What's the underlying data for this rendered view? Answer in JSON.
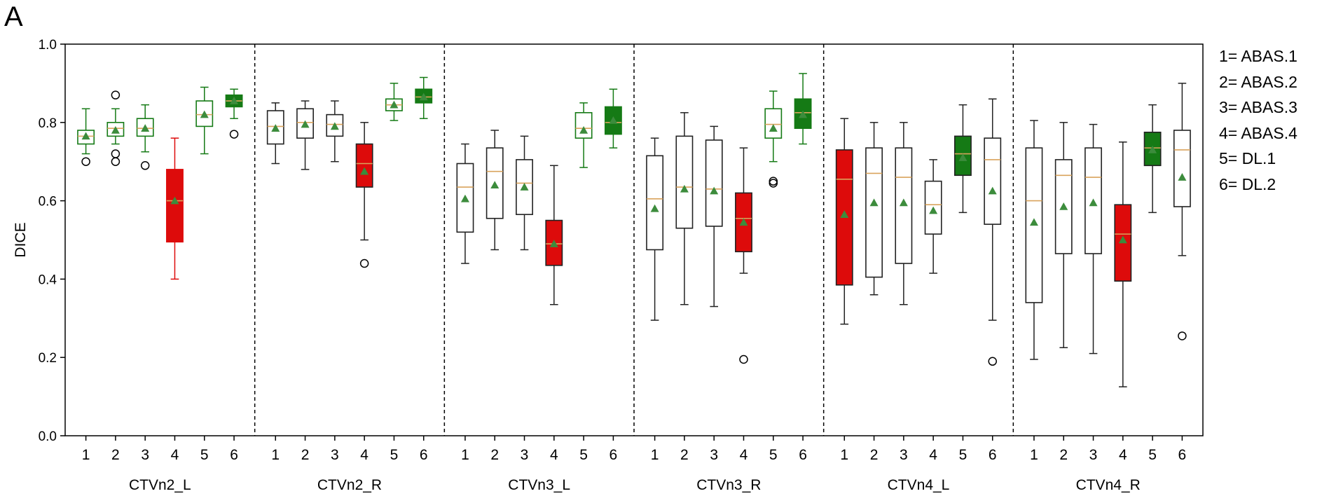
{
  "panel_label": "A",
  "chart_data": {
    "type": "box",
    "title": "",
    "ylabel": "DICE",
    "ylim": [
      0.0,
      1.0
    ],
    "yticks": [
      "0.0",
      "0.2",
      "0.4",
      "0.6",
      "0.8",
      "1.0"
    ],
    "grid": false,
    "legend_position": "right",
    "legend": [
      "1= ABAS.1",
      "2= ABAS.2",
      "3= ABAS.3",
      "4= ABAS.4",
      "5= DL.1",
      "6= DL.2"
    ],
    "method_ticks": [
      "1",
      "2",
      "3",
      "4",
      "5",
      "6"
    ],
    "colors": {
      "green": "#157a15",
      "red": "#dd0b0b",
      "white": "#ffffff",
      "median": "#d9a35c",
      "mean_marker": "#3c8c3c"
    },
    "groups": [
      {
        "name": "CTVn2_L",
        "boxes": [
          {
            "whislo": 0.72,
            "q1": 0.745,
            "med": 0.765,
            "q3": 0.78,
            "whishi": 0.835,
            "mean": 0.765,
            "fliers": [
              0.7
            ],
            "fill": "white",
            "edge": "green"
          },
          {
            "whislo": 0.745,
            "q1": 0.765,
            "med": 0.785,
            "q3": 0.8,
            "whishi": 0.835,
            "mean": 0.78,
            "fliers": [
              0.87,
              0.72,
              0.7
            ],
            "fill": "white",
            "edge": "green"
          },
          {
            "whislo": 0.725,
            "q1": 0.765,
            "med": 0.785,
            "q3": 0.81,
            "whishi": 0.845,
            "mean": 0.785,
            "fliers": [
              0.69
            ],
            "fill": "white",
            "edge": "green"
          },
          {
            "whislo": 0.4,
            "q1": 0.495,
            "med": 0.6,
            "q3": 0.68,
            "whishi": 0.76,
            "mean": 0.6,
            "fliers": [],
            "fill": "red",
            "edge": "red"
          },
          {
            "whislo": 0.72,
            "q1": 0.79,
            "med": 0.82,
            "q3": 0.855,
            "whishi": 0.89,
            "mean": 0.82,
            "fliers": [],
            "fill": "white",
            "edge": "green"
          },
          {
            "whislo": 0.81,
            "q1": 0.84,
            "med": 0.855,
            "q3": 0.87,
            "whishi": 0.885,
            "mean": 0.855,
            "fliers": [
              0.77
            ],
            "fill": "green",
            "edge": "green"
          }
        ]
      },
      {
        "name": "CTVn2_R",
        "boxes": [
          {
            "whislo": 0.695,
            "q1": 0.745,
            "med": 0.79,
            "q3": 0.83,
            "whishi": 0.85,
            "mean": 0.785,
            "fliers": [],
            "fill": "white",
            "edge": "black"
          },
          {
            "whislo": 0.68,
            "q1": 0.76,
            "med": 0.8,
            "q3": 0.835,
            "whishi": 0.855,
            "mean": 0.795,
            "fliers": [],
            "fill": "white",
            "edge": "black"
          },
          {
            "whislo": 0.7,
            "q1": 0.765,
            "med": 0.795,
            "q3": 0.82,
            "whishi": 0.855,
            "mean": 0.79,
            "fliers": [],
            "fill": "white",
            "edge": "black"
          },
          {
            "whislo": 0.5,
            "q1": 0.635,
            "med": 0.695,
            "q3": 0.745,
            "whishi": 0.8,
            "mean": 0.675,
            "fliers": [
              0.44
            ],
            "fill": "red",
            "edge": "black"
          },
          {
            "whislo": 0.805,
            "q1": 0.83,
            "med": 0.845,
            "q3": 0.86,
            "whishi": 0.9,
            "mean": 0.845,
            "fliers": [],
            "fill": "white",
            "edge": "green"
          },
          {
            "whislo": 0.81,
            "q1": 0.85,
            "med": 0.865,
            "q3": 0.885,
            "whishi": 0.915,
            "mean": 0.865,
            "fliers": [],
            "fill": "green",
            "edge": "green"
          }
        ]
      },
      {
        "name": "CTVn3_L",
        "boxes": [
          {
            "whislo": 0.44,
            "q1": 0.52,
            "med": 0.635,
            "q3": 0.695,
            "whishi": 0.745,
            "mean": 0.605,
            "fliers": [],
            "fill": "white",
            "edge": "black"
          },
          {
            "whislo": 0.475,
            "q1": 0.555,
            "med": 0.675,
            "q3": 0.735,
            "whishi": 0.78,
            "mean": 0.64,
            "fliers": [],
            "fill": "white",
            "edge": "black"
          },
          {
            "whislo": 0.475,
            "q1": 0.565,
            "med": 0.645,
            "q3": 0.705,
            "whishi": 0.765,
            "mean": 0.635,
            "fliers": [],
            "fill": "white",
            "edge": "black"
          },
          {
            "whislo": 0.335,
            "q1": 0.435,
            "med": 0.49,
            "q3": 0.55,
            "whishi": 0.69,
            "mean": 0.49,
            "fliers": [],
            "fill": "red",
            "edge": "black"
          },
          {
            "whislo": 0.685,
            "q1": 0.76,
            "med": 0.785,
            "q3": 0.825,
            "whishi": 0.85,
            "mean": 0.78,
            "fliers": [],
            "fill": "white",
            "edge": "green"
          },
          {
            "whislo": 0.735,
            "q1": 0.77,
            "med": 0.8,
            "q3": 0.84,
            "whishi": 0.885,
            "mean": 0.805,
            "fliers": [],
            "fill": "green",
            "edge": "green"
          }
        ]
      },
      {
        "name": "CTVn3_R",
        "boxes": [
          {
            "whislo": 0.295,
            "q1": 0.475,
            "med": 0.605,
            "q3": 0.715,
            "whishi": 0.76,
            "mean": 0.58,
            "fliers": [],
            "fill": "white",
            "edge": "black"
          },
          {
            "whislo": 0.335,
            "q1": 0.53,
            "med": 0.635,
            "q3": 0.765,
            "whishi": 0.825,
            "mean": 0.63,
            "fliers": [],
            "fill": "white",
            "edge": "black"
          },
          {
            "whislo": 0.33,
            "q1": 0.535,
            "med": 0.63,
            "q3": 0.755,
            "whishi": 0.79,
            "mean": 0.625,
            "fliers": [],
            "fill": "white",
            "edge": "black"
          },
          {
            "whislo": 0.415,
            "q1": 0.47,
            "med": 0.555,
            "q3": 0.62,
            "whishi": 0.735,
            "mean": 0.545,
            "fliers": [
              0.195
            ],
            "fill": "red",
            "edge": "black"
          },
          {
            "whislo": 0.7,
            "q1": 0.76,
            "med": 0.795,
            "q3": 0.835,
            "whishi": 0.88,
            "mean": 0.785,
            "fliers": [
              0.65,
              0.645
            ],
            "fill": "white",
            "edge": "green"
          },
          {
            "whislo": 0.745,
            "q1": 0.785,
            "med": 0.825,
            "q3": 0.86,
            "whishi": 0.925,
            "mean": 0.82,
            "fliers": [],
            "fill": "green",
            "edge": "green"
          }
        ]
      },
      {
        "name": "CTVn4_L",
        "boxes": [
          {
            "whislo": 0.285,
            "q1": 0.385,
            "med": 0.655,
            "q3": 0.73,
            "whishi": 0.81,
            "mean": 0.565,
            "fliers": [],
            "fill": "red",
            "edge": "black"
          },
          {
            "whislo": 0.36,
            "q1": 0.405,
            "med": 0.67,
            "q3": 0.735,
            "whishi": 0.8,
            "mean": 0.595,
            "fliers": [],
            "fill": "white",
            "edge": "black"
          },
          {
            "whislo": 0.335,
            "q1": 0.44,
            "med": 0.66,
            "q3": 0.735,
            "whishi": 0.8,
            "mean": 0.595,
            "fliers": [],
            "fill": "white",
            "edge": "black"
          },
          {
            "whislo": 0.415,
            "q1": 0.515,
            "med": 0.59,
            "q3": 0.65,
            "whishi": 0.705,
            "mean": 0.575,
            "fliers": [],
            "fill": "white",
            "edge": "black"
          },
          {
            "whislo": 0.57,
            "q1": 0.665,
            "med": 0.72,
            "q3": 0.765,
            "whishi": 0.845,
            "mean": 0.71,
            "fliers": [],
            "fill": "green",
            "edge": "black"
          },
          {
            "whislo": 0.295,
            "q1": 0.54,
            "med": 0.705,
            "q3": 0.76,
            "whishi": 0.86,
            "mean": 0.625,
            "fliers": [
              0.19
            ],
            "fill": "white",
            "edge": "black"
          }
        ]
      },
      {
        "name": "CTVn4_R",
        "boxes": [
          {
            "whislo": 0.195,
            "q1": 0.34,
            "med": 0.6,
            "q3": 0.735,
            "whishi": 0.805,
            "mean": 0.545,
            "fliers": [],
            "fill": "white",
            "edge": "black"
          },
          {
            "whislo": 0.225,
            "q1": 0.465,
            "med": 0.665,
            "q3": 0.705,
            "whishi": 0.8,
            "mean": 0.585,
            "fliers": [],
            "fill": "white",
            "edge": "black"
          },
          {
            "whislo": 0.21,
            "q1": 0.465,
            "med": 0.66,
            "q3": 0.735,
            "whishi": 0.795,
            "mean": 0.595,
            "fliers": [],
            "fill": "white",
            "edge": "black"
          },
          {
            "whislo": 0.125,
            "q1": 0.395,
            "med": 0.515,
            "q3": 0.59,
            "whishi": 0.75,
            "mean": 0.5,
            "fliers": [],
            "fill": "red",
            "edge": "black"
          },
          {
            "whislo": 0.57,
            "q1": 0.69,
            "med": 0.735,
            "q3": 0.775,
            "whishi": 0.845,
            "mean": 0.73,
            "fliers": [],
            "fill": "green",
            "edge": "black"
          },
          {
            "whislo": 0.46,
            "q1": 0.585,
            "med": 0.73,
            "q3": 0.78,
            "whishi": 0.9,
            "mean": 0.66,
            "fliers": [
              0.255
            ],
            "fill": "white",
            "edge": "black"
          }
        ]
      }
    ]
  }
}
